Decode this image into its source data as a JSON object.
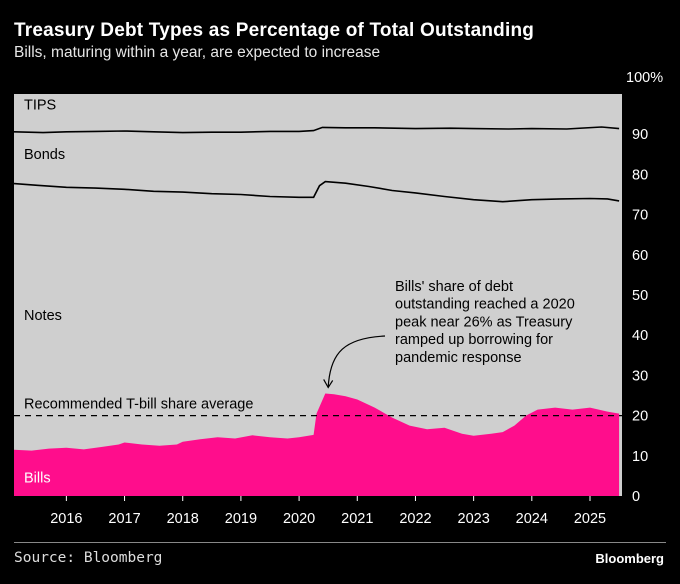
{
  "header": {
    "title": "Treasury Debt Types as Percentage of Total Outstanding",
    "subtitle": "Bills, maturing within a year, are expected to increase"
  },
  "footer": {
    "source": "Source: Bloomberg",
    "logo": "Bloomberg"
  },
  "chart_data": {
    "type": "area",
    "title": "Treasury Debt Types as Percentage of Total Outstanding",
    "subtitle": "Bills, maturing within a year, are expected to increase",
    "xlim": [
      2015.1,
      2025.55
    ],
    "ylim": [
      0,
      100
    ],
    "y_ticks": [
      0,
      10,
      20,
      30,
      40,
      50,
      60,
      70,
      80,
      90
    ],
    "y_top_label": "100%",
    "x_ticks": [
      2016,
      2017,
      2018,
      2019,
      2020,
      2021,
      2022,
      2023,
      2024,
      2025
    ],
    "grid": false,
    "colors": {
      "bills": "#ff0d8c",
      "background": "#cfcfcf",
      "line": "#000000"
    },
    "region_labels": {
      "tips": "TIPS",
      "bonds": "Bonds",
      "notes": "Notes",
      "bills": "Bills"
    },
    "reference_line": {
      "label": "Recommended T-bill share average",
      "value": 20
    },
    "annotation": {
      "lines": [
        "Bills' share of debt",
        "outstanding reached a 2020",
        "peak near 26% as Treasury",
        "ramped up borrowing for",
        "pandemic response"
      ],
      "x": 2020.5,
      "y": 26
    },
    "series": [
      {
        "name": "Bills",
        "x": [
          2015.1,
          2015.4,
          2015.7,
          2016.0,
          2016.3,
          2016.6,
          2016.9,
          2017.0,
          2017.3,
          2017.6,
          2017.9,
          2018.0,
          2018.3,
          2018.6,
          2018.9,
          2019.2,
          2019.5,
          2019.8,
          2020.0,
          2020.25,
          2020.3,
          2020.45,
          2020.6,
          2020.8,
          2021.0,
          2021.3,
          2021.6,
          2021.9,
          2022.2,
          2022.5,
          2022.8,
          2023.0,
          2023.3,
          2023.5,
          2023.7,
          2023.9,
          2024.1,
          2024.4,
          2024.7,
          2025.0,
          2025.3,
          2025.5
        ],
        "values": [
          11.5,
          11.3,
          11.8,
          12.0,
          11.6,
          12.2,
          12.8,
          13.3,
          12.8,
          12.5,
          12.8,
          13.5,
          14.1,
          14.6,
          14.3,
          15.1,
          14.6,
          14.3,
          14.6,
          15.2,
          20.5,
          25.5,
          25.3,
          24.8,
          24.0,
          22.0,
          19.5,
          17.5,
          16.6,
          17.0,
          15.5,
          15.0,
          15.5,
          15.9,
          17.5,
          20.0,
          21.5,
          22.0,
          21.5,
          22.0,
          21.0,
          20.5
        ]
      },
      {
        "name": "Bonds",
        "x": [
          2015.1,
          2015.5,
          2016.0,
          2016.5,
          2017.0,
          2017.5,
          2018.0,
          2018.5,
          2019.0,
          2019.5,
          2020.0,
          2020.25,
          2020.35,
          2020.45,
          2020.8,
          2021.2,
          2021.6,
          2022.0,
          2022.5,
          2023.0,
          2023.5,
          2024.0,
          2024.5,
          2025.0,
          2025.3,
          2025.5
        ],
        "values": [
          77.7,
          77.3,
          76.8,
          76.6,
          76.3,
          75.8,
          75.6,
          75.2,
          75.0,
          74.5,
          74.3,
          74.3,
          77.2,
          78.2,
          77.8,
          77.0,
          76.0,
          75.4,
          74.5,
          73.7,
          73.2,
          73.7,
          73.9,
          74.0,
          73.9,
          73.4
        ]
      },
      {
        "name": "TIPS",
        "x": [
          2015.1,
          2015.6,
          2016.0,
          2016.5,
          2017.0,
          2017.5,
          2018.0,
          2018.5,
          2019.0,
          2019.5,
          2020.0,
          2020.25,
          2020.4,
          2020.8,
          2021.3,
          2022.0,
          2022.6,
          2023.0,
          2023.6,
          2024.0,
          2024.6,
          2025.2,
          2025.5
        ],
        "values": [
          90.6,
          90.4,
          90.6,
          90.7,
          90.8,
          90.6,
          90.4,
          90.5,
          90.5,
          90.7,
          90.7,
          90.9,
          91.7,
          91.6,
          91.6,
          91.4,
          91.5,
          91.4,
          91.3,
          91.4,
          91.3,
          91.8,
          91.4
        ]
      }
    ]
  }
}
